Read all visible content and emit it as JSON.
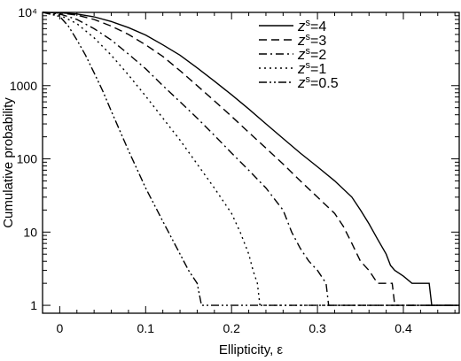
{
  "chart_data": {
    "type": "line",
    "xlabel": "Ellipticity, ε",
    "ylabel": "Cumulative probability",
    "xlim": [
      -0.02,
      0.465
    ],
    "ylim": [
      0.78,
      10000
    ],
    "yscale": "log",
    "grid": false,
    "legend_position": "top-right",
    "x_ticks": [
      0,
      0.1,
      0.2,
      0.3,
      0.4
    ],
    "x_tick_labels": [
      "0",
      "0.1",
      "0.2",
      "0.3",
      "0.4"
    ],
    "y_ticks": [
      1,
      10,
      100,
      1000,
      10000
    ],
    "y_tick_labels": [
      "1",
      "10",
      "100",
      "1000",
      "10⁴"
    ],
    "series": [
      {
        "name": "z_s=4",
        "label_main": "z",
        "label_sub": "s",
        "label_rest": "=4",
        "style": "solid",
        "points": [
          [
            -0.02,
            10000
          ],
          [
            0,
            9900
          ],
          [
            0.02,
            9500
          ],
          [
            0.04,
            8700
          ],
          [
            0.06,
            7500
          ],
          [
            0.08,
            6200
          ],
          [
            0.1,
            4900
          ],
          [
            0.12,
            3600
          ],
          [
            0.14,
            2600
          ],
          [
            0.16,
            1750
          ],
          [
            0.18,
            1150
          ],
          [
            0.2,
            750
          ],
          [
            0.22,
            480
          ],
          [
            0.24,
            300
          ],
          [
            0.26,
            190
          ],
          [
            0.28,
            120
          ],
          [
            0.3,
            78
          ],
          [
            0.32,
            50
          ],
          [
            0.34,
            30
          ],
          [
            0.35,
            20
          ],
          [
            0.36,
            13
          ],
          [
            0.37,
            8
          ],
          [
            0.38,
            5
          ],
          [
            0.385,
            3.5
          ],
          [
            0.39,
            3
          ],
          [
            0.4,
            2.5
          ],
          [
            0.41,
            2
          ],
          [
            0.42,
            2
          ],
          [
            0.43,
            2
          ],
          [
            0.433,
            1
          ],
          [
            0.465,
            1
          ]
        ]
      },
      {
        "name": "z_s=3",
        "label_main": "z",
        "label_sub": "s",
        "label_rest": "=3",
        "style": "dash",
        "points": [
          [
            -0.02,
            10000
          ],
          [
            0,
            9800
          ],
          [
            0.02,
            9200
          ],
          [
            0.04,
            8000
          ],
          [
            0.06,
            6500
          ],
          [
            0.08,
            5000
          ],
          [
            0.1,
            3600
          ],
          [
            0.12,
            2500
          ],
          [
            0.14,
            1600
          ],
          [
            0.16,
            1000
          ],
          [
            0.18,
            620
          ],
          [
            0.2,
            380
          ],
          [
            0.22,
            230
          ],
          [
            0.24,
            140
          ],
          [
            0.26,
            85
          ],
          [
            0.28,
            50
          ],
          [
            0.3,
            30
          ],
          [
            0.32,
            18
          ],
          [
            0.33,
            12
          ],
          [
            0.34,
            7
          ],
          [
            0.35,
            4
          ],
          [
            0.36,
            3
          ],
          [
            0.37,
            2
          ],
          [
            0.38,
            2
          ],
          [
            0.387,
            2
          ],
          [
            0.39,
            1
          ],
          [
            0.465,
            1
          ]
        ]
      },
      {
        "name": "z_s=2",
        "label_main": "z",
        "label_sub": "s",
        "label_rest": "=2",
        "style": "dashdot",
        "points": [
          [
            -0.02,
            10000
          ],
          [
            0,
            9500
          ],
          [
            0.02,
            8000
          ],
          [
            0.04,
            6000
          ],
          [
            0.06,
            4200
          ],
          [
            0.08,
            2700
          ],
          [
            0.1,
            1700
          ],
          [
            0.12,
            1000
          ],
          [
            0.14,
            600
          ],
          [
            0.16,
            360
          ],
          [
            0.18,
            210
          ],
          [
            0.2,
            120
          ],
          [
            0.22,
            70
          ],
          [
            0.24,
            40
          ],
          [
            0.26,
            20
          ],
          [
            0.27,
            10
          ],
          [
            0.28,
            6
          ],
          [
            0.29,
            4
          ],
          [
            0.3,
            3
          ],
          [
            0.31,
            2
          ],
          [
            0.313,
            1
          ],
          [
            0.465,
            1
          ]
        ]
      },
      {
        "name": "z_s=1",
        "label_main": "z",
        "label_sub": "s",
        "label_rest": "=1",
        "style": "dot",
        "points": [
          [
            -0.02,
            10000
          ],
          [
            0,
            9200
          ],
          [
            0.02,
            7000
          ],
          [
            0.04,
            4500
          ],
          [
            0.06,
            2600
          ],
          [
            0.08,
            1400
          ],
          [
            0.1,
            720
          ],
          [
            0.12,
            360
          ],
          [
            0.14,
            180
          ],
          [
            0.16,
            85
          ],
          [
            0.18,
            40
          ],
          [
            0.2,
            18
          ],
          [
            0.21,
            10
          ],
          [
            0.22,
            5
          ],
          [
            0.225,
            3
          ],
          [
            0.23,
            2
          ],
          [
            0.233,
            1
          ],
          [
            0.465,
            1
          ]
        ]
      },
      {
        "name": "z_s=0.5",
        "label_main": "z",
        "label_sub": "s",
        "label_rest": "=0.5",
        "style": "dashdotdot",
        "points": [
          [
            -0.02,
            10000
          ],
          [
            0,
            8800
          ],
          [
            0.01,
            6500
          ],
          [
            0.02,
            4200
          ],
          [
            0.03,
            2600
          ],
          [
            0.04,
            1500
          ],
          [
            0.05,
            850
          ],
          [
            0.06,
            450
          ],
          [
            0.08,
            130
          ],
          [
            0.1,
            40
          ],
          [
            0.12,
            14
          ],
          [
            0.14,
            5
          ],
          [
            0.15,
            3
          ],
          [
            0.16,
            2
          ],
          [
            0.165,
            1
          ],
          [
            0.465,
            1
          ]
        ]
      }
    ]
  }
}
